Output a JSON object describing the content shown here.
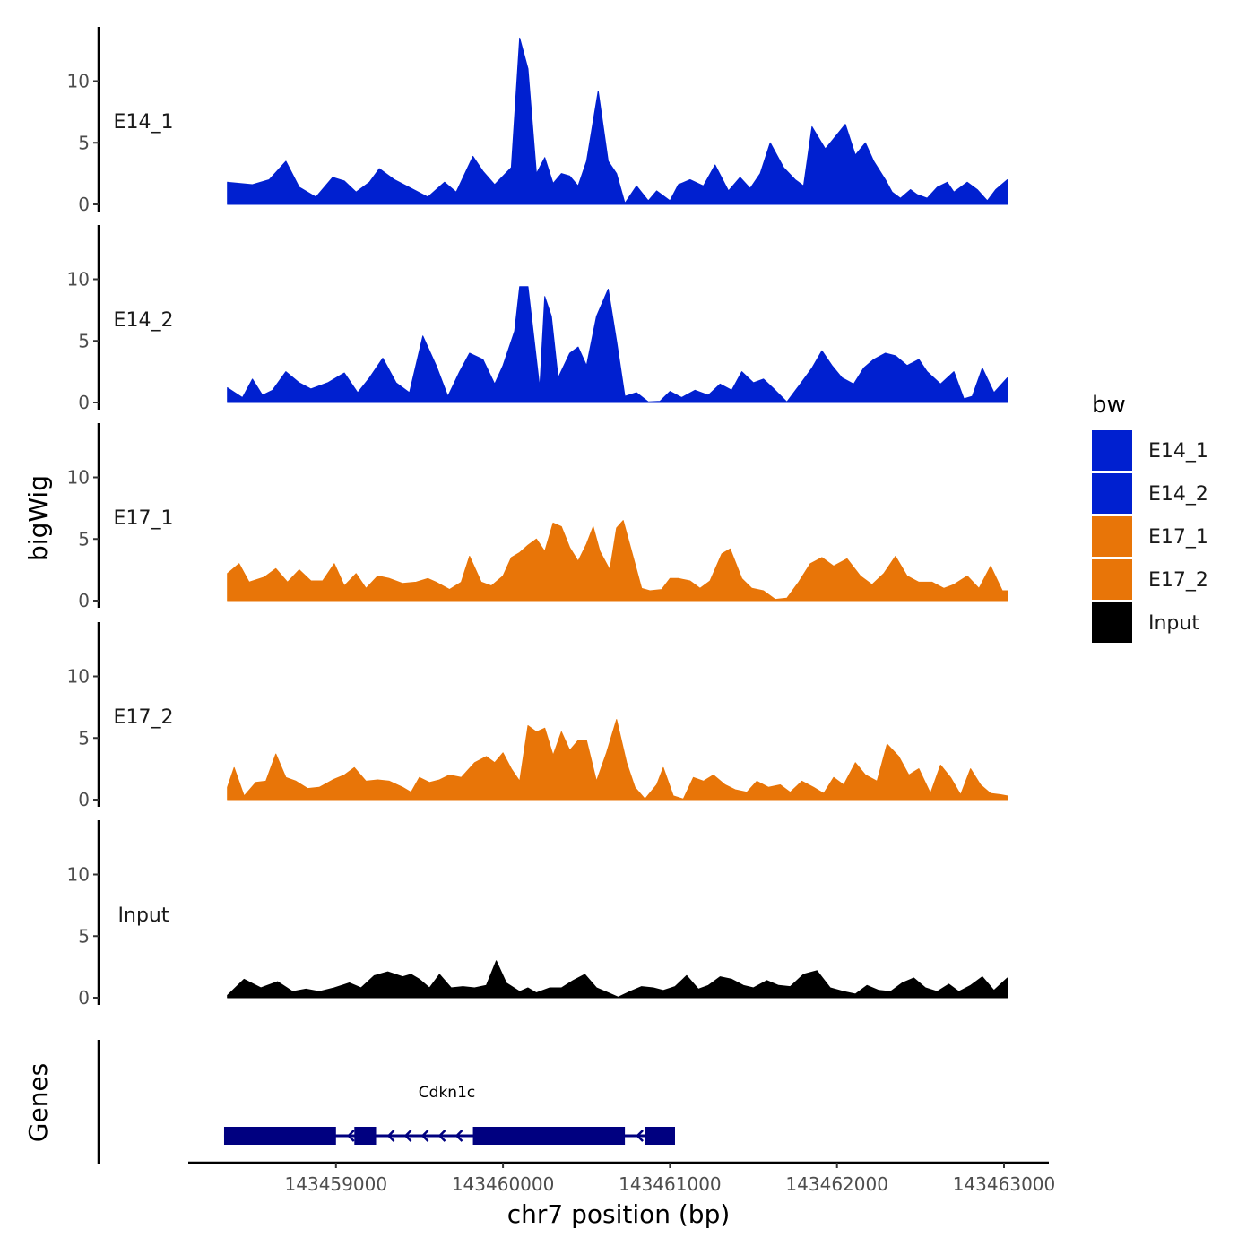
{
  "chart_data": {
    "type": "area",
    "title": "",
    "ylabel": "bigWig",
    "xlabel": "chr7 position (bp)",
    "xlim": [
      143458100,
      143463100
    ],
    "ylim": [
      0,
      14
    ],
    "y_ticks": [
      0,
      5,
      10
    ],
    "x_ticks": [
      143459000,
      143460000,
      143461000,
      143462000,
      143463000
    ],
    "x_tick_labels": [
      "143459000",
      "143460000",
      "143461000",
      "143462000",
      "143463000"
    ],
    "legend": {
      "title": "bw",
      "position": "right",
      "entries": [
        {
          "name": "E14_1",
          "color": "#0020d0"
        },
        {
          "name": "E14_2",
          "color": "#0020d0"
        },
        {
          "name": "E17_1",
          "color": "#e87508"
        },
        {
          "name": "E17_2",
          "color": "#e87508"
        },
        {
          "name": "Input",
          "color": "#000000"
        }
      ]
    },
    "series": [
      {
        "name": "E14_1",
        "color": "#0020d0",
        "x": [
          143458350,
          143458500,
          143458600,
          143458700,
          143458780,
          143458880,
          143458980,
          143459050,
          143459120,
          143459200,
          143459260,
          143459350,
          143459450,
          143459550,
          143459650,
          143459720,
          143459820,
          143459880,
          143459950,
          143460050,
          143460100,
          143460150,
          143460200,
          143460250,
          143460300,
          143460350,
          143460400,
          143460450,
          143460500,
          143460570,
          143460630,
          143460680,
          143460730,
          143460800,
          143460870,
          143460920,
          143461000,
          143461050,
          143461120,
          143461200,
          143461270,
          143461350,
          143461420,
          143461480,
          143461540,
          143461600,
          143461680,
          143461750,
          143461800,
          143461850,
          143461930,
          143461990,
          143462050,
          143462110,
          143462170,
          143462220,
          143462290,
          143462330,
          143462380,
          143462440,
          143462480,
          143462540,
          143462600,
          143462660,
          143462700,
          143462780,
          143462840,
          143462900,
          143462950,
          143463020
        ],
        "y": [
          1.8,
          1.6,
          2.0,
          3.5,
          1.4,
          0.6,
          2.2,
          1.9,
          1.0,
          1.8,
          2.9,
          2.0,
          1.3,
          0.6,
          1.8,
          1.0,
          3.9,
          2.7,
          1.6,
          3.0,
          13.5,
          11.0,
          2.5,
          3.8,
          1.7,
          2.5,
          2.3,
          1.5,
          3.5,
          9.2,
          3.5,
          2.5,
          0.1,
          1.5,
          0.3,
          1.1,
          0.3,
          1.6,
          2.0,
          1.5,
          3.2,
          1.1,
          2.2,
          1.3,
          2.5,
          5.0,
          3.0,
          2.0,
          1.5,
          6.3,
          4.5,
          5.5,
          6.5,
          4.0,
          5.0,
          3.5,
          2.0,
          1.0,
          0.5,
          1.2,
          0.8,
          0.5,
          1.4,
          1.8,
          1.0,
          1.8,
          1.2,
          0.3,
          1.2,
          2.0
        ]
      },
      {
        "name": "E14_2",
        "color": "#0020d0",
        "x": [
          143458350,
          143458440,
          143458500,
          143458560,
          143458620,
          143458700,
          143458780,
          143458850,
          143458950,
          143459050,
          143459130,
          143459200,
          143459280,
          143459360,
          143459440,
          143459520,
          143459600,
          143459670,
          143459740,
          143459800,
          143459880,
          143459950,
          143460000,
          143460070,
          143460100,
          143460150,
          143460220,
          143460250,
          143460290,
          143460330,
          143460400,
          143460450,
          143460500,
          143460560,
          143460630,
          143460680,
          143460730,
          143460800,
          143460870,
          143460940,
          143461000,
          143461070,
          143461150,
          143461230,
          143461300,
          143461370,
          143461430,
          143461500,
          143461560,
          143461630,
          143461700,
          143461780,
          143461850,
          143461910,
          143461970,
          143462030,
          143462100,
          143462160,
          143462220,
          143462290,
          143462350,
          143462420,
          143462490,
          143462540,
          143462620,
          143462700,
          143462760,
          143462810,
          143462870,
          143462940,
          143463020
        ],
        "y": [
          1.2,
          0.4,
          1.9,
          0.6,
          1.0,
          2.5,
          1.6,
          1.1,
          1.6,
          2.4,
          0.8,
          2.0,
          3.6,
          1.6,
          0.8,
          5.4,
          3.0,
          0.5,
          2.5,
          4.0,
          3.5,
          1.5,
          3.0,
          5.8,
          9.4,
          9.4,
          1.2,
          8.6,
          7.0,
          2.0,
          4.0,
          4.5,
          3.0,
          7.0,
          9.2,
          5.0,
          0.5,
          0.8,
          0.05,
          0.1,
          0.9,
          0.4,
          1.0,
          0.6,
          1.5,
          1.0,
          2.5,
          1.6,
          1.9,
          1.0,
          0.05,
          1.5,
          2.8,
          4.2,
          3.0,
          2.0,
          1.5,
          2.8,
          3.5,
          4.0,
          3.8,
          3.0,
          3.5,
          2.5,
          1.5,
          2.5,
          0.3,
          0.5,
          2.8,
          0.8,
          2.0
        ]
      },
      {
        "name": "E17_1",
        "color": "#e87508",
        "x": [
          143458350,
          143458420,
          143458480,
          143458570,
          143458640,
          143458710,
          143458780,
          143458850,
          143458920,
          143458990,
          143459050,
          143459120,
          143459180,
          143459250,
          143459320,
          143459400,
          143459480,
          143459550,
          143459600,
          143459680,
          143459750,
          143459800,
          143459870,
          143459930,
          143460000,
          143460050,
          143460100,
          143460150,
          143460200,
          143460250,
          143460300,
          143460350,
          143460400,
          143460450,
          143460500,
          143460540,
          143460580,
          143460640,
          143460680,
          143460720,
          143460790,
          143460830,
          143460880,
          143460950,
          143461000,
          143461050,
          143461120,
          143461180,
          143461240,
          143461310,
          143461360,
          143461430,
          143461490,
          143461560,
          143461630,
          143461700,
          143461770,
          143461840,
          143461910,
          143461980,
          143462060,
          143462140,
          143462210,
          143462280,
          143462350,
          143462420,
          143462490,
          143462570,
          143462640,
          143462700,
          143462780,
          143462850,
          143462920,
          143462990,
          143463020
        ],
        "y": [
          2.2,
          3.0,
          1.5,
          1.9,
          2.6,
          1.5,
          2.5,
          1.6,
          1.6,
          3.0,
          1.2,
          2.2,
          1.0,
          2.0,
          1.8,
          1.4,
          1.5,
          1.8,
          1.5,
          0.9,
          1.5,
          3.6,
          1.5,
          1.2,
          2.0,
          3.5,
          3.9,
          4.5,
          5.0,
          4.0,
          6.3,
          6.0,
          4.3,
          3.2,
          4.6,
          6.0,
          4.0,
          2.5,
          5.9,
          6.5,
          3.0,
          1.0,
          0.8,
          0.9,
          1.8,
          1.8,
          1.6,
          1.0,
          1.6,
          3.8,
          4.2,
          1.8,
          1.0,
          0.8,
          0.1,
          0.2,
          1.5,
          3.0,
          3.5,
          2.8,
          3.4,
          2.0,
          1.3,
          2.2,
          3.6,
          2.0,
          1.5,
          1.5,
          1.0,
          1.3,
          2.0,
          1.0,
          2.8,
          0.8,
          0.8
        ]
      },
      {
        "name": "E17_2",
        "color": "#e87508",
        "x": [
          143458350,
          143458390,
          143458450,
          143458520,
          143458580,
          143458640,
          143458700,
          143458760,
          143458830,
          143458900,
          143458980,
          143459050,
          143459110,
          143459180,
          143459250,
          143459320,
          143459400,
          143459450,
          143459500,
          143459560,
          143459620,
          143459680,
          143459750,
          143459830,
          143459900,
          143459950,
          143460000,
          143460050,
          143460100,
          143460150,
          143460200,
          143460250,
          143460300,
          143460350,
          143460400,
          143460450,
          143460500,
          143460560,
          143460620,
          143460680,
          143460740,
          143460790,
          143460850,
          143460920,
          143460960,
          143461020,
          143461080,
          143461140,
          143461200,
          143461260,
          143461330,
          143461390,
          143461460,
          143461520,
          143461590,
          143461660,
          143461720,
          143461790,
          143461860,
          143461920,
          143461980,
          143462040,
          143462110,
          143462170,
          143462240,
          143462300,
          143462370,
          143462430,
          143462490,
          143462560,
          143462620,
          143462680,
          143462740,
          143462800,
          143462860,
          143462920,
          143462980,
          143463020
        ],
        "y": [
          1.0,
          2.6,
          0.3,
          1.4,
          1.5,
          3.7,
          1.8,
          1.5,
          0.9,
          1.0,
          1.6,
          2.0,
          2.6,
          1.5,
          1.6,
          1.5,
          1.0,
          0.6,
          1.8,
          1.4,
          1.6,
          2.0,
          1.8,
          3.0,
          3.5,
          3.0,
          3.8,
          2.5,
          1.5,
          6.0,
          5.5,
          5.8,
          3.6,
          5.5,
          4.0,
          4.8,
          4.8,
          1.5,
          3.8,
          6.5,
          3.0,
          1.0,
          0.05,
          1.2,
          2.6,
          0.3,
          0.05,
          1.8,
          1.5,
          2.0,
          1.2,
          0.8,
          0.6,
          1.5,
          1.0,
          1.2,
          0.6,
          1.5,
          1.0,
          0.5,
          1.8,
          1.2,
          3.0,
          2.0,
          1.5,
          4.5,
          3.5,
          2.0,
          2.5,
          0.5,
          2.8,
          1.8,
          0.4,
          2.5,
          1.2,
          0.5,
          0.4,
          0.3
        ]
      },
      {
        "name": "Input",
        "color": "#000000",
        "x": [
          143458350,
          143458450,
          143458550,
          143458650,
          143458740,
          143458820,
          143458900,
          143458990,
          143459080,
          143459150,
          143459230,
          143459310,
          143459400,
          143459450,
          143459500,
          143459560,
          143459620,
          143459690,
          143459760,
          143459830,
          143459900,
          143459960,
          143460020,
          143460100,
          143460150,
          143460200,
          143460280,
          143460350,
          143460420,
          143460490,
          143460560,
          143460630,
          143460690,
          143460760,
          143460830,
          143460900,
          143460960,
          143461030,
          143461100,
          143461170,
          143461230,
          143461300,
          143461370,
          143461440,
          143461500,
          143461580,
          143461650,
          143461720,
          143461800,
          143461880,
          143461960,
          143462040,
          143462110,
          143462180,
          143462250,
          143462320,
          143462390,
          143462460,
          143462530,
          143462600,
          143462670,
          143462730,
          143462800,
          143462870,
          143462940,
          143463020
        ],
        "y": [
          0.2,
          1.5,
          0.8,
          1.3,
          0.5,
          0.7,
          0.5,
          0.8,
          1.2,
          0.8,
          1.8,
          2.1,
          1.7,
          1.9,
          1.5,
          0.8,
          1.9,
          0.8,
          0.9,
          0.8,
          1.0,
          3.0,
          1.2,
          0.5,
          0.8,
          0.4,
          0.8,
          0.8,
          1.4,
          1.9,
          0.8,
          0.4,
          0.05,
          0.5,
          0.9,
          0.8,
          0.6,
          0.9,
          1.8,
          0.7,
          1.0,
          1.7,
          1.5,
          1.0,
          0.8,
          1.4,
          1.0,
          0.9,
          1.9,
          2.2,
          0.8,
          0.5,
          0.3,
          1.0,
          0.6,
          0.5,
          1.2,
          1.6,
          0.8,
          0.5,
          1.1,
          0.5,
          1.0,
          1.7,
          0.6,
          1.6
        ]
      }
    ],
    "genes_track": {
      "ylabel": "Genes",
      "gene_name": "Cdkn1c",
      "strand": "-",
      "color": "#000080",
      "start": 143458330,
      "end": 143461030,
      "exons": [
        {
          "start": 143458330,
          "end": 143459000
        },
        {
          "start": 143459110,
          "end": 143459240
        },
        {
          "start": 143459820,
          "end": 143460730
        },
        {
          "start": 143460850,
          "end": 143461030
        }
      ]
    }
  }
}
